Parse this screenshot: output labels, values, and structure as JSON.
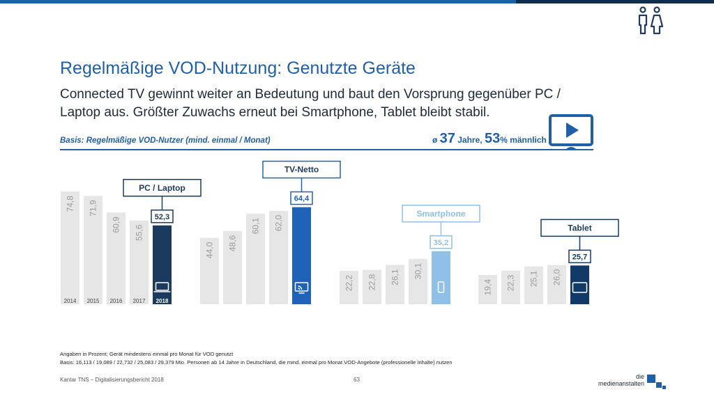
{
  "header": {
    "title": "Regelmäßige VOD-Nutzung: Genutzte Geräte",
    "subtitle": "Connected TV gewinnt weiter an Bedeutung und baut den Vorsprung gegenüber PC / Laptop aus. Größter Zuwachs erneut bei Smartphone, Tablet bleibt stabil.",
    "basis": "Basis: Regelmäßige VOD-Nutzer (mind. einmal / Monat)",
    "stats": {
      "prefix": "ø ",
      "age": "37",
      "age_unit": " Jahre, ",
      "male": "53",
      "male_unit": "% männlich"
    }
  },
  "icons": {
    "people": "male-female-icon",
    "tv": "tv-play-icon"
  },
  "colors": {
    "accent": "#1f5fa8",
    "dark": "#1c3a5e",
    "grey_bar": "#e6e6e6",
    "smartphone": "#8fc0e8",
    "tablet": "#123a66"
  },
  "chart_data": {
    "type": "bar",
    "categories": [
      "2014",
      "2015",
      "2016",
      "2017",
      "2018"
    ],
    "ylim": [
      0,
      80
    ],
    "groups": [
      {
        "name": "PC / Laptop",
        "icon": "laptop-icon",
        "values": [
          74.8,
          71.9,
          60.9,
          55.6,
          52.3
        ],
        "labels": [
          "74,8",
          "71,9",
          "60,9",
          "55,6",
          "52,3"
        ],
        "highlight_color": "#1c3a5e"
      },
      {
        "name": "TV-Netto",
        "icon": "connected-tv-icon",
        "values": [
          44.0,
          48.6,
          60.1,
          62.0,
          64.4
        ],
        "labels": [
          "44,0",
          "48,6",
          "60,1",
          "62,0",
          "64,4"
        ],
        "highlight_color": "#1e63b8"
      },
      {
        "name": "Smartphone",
        "icon": "smartphone-icon",
        "values": [
          22.2,
          22.8,
          26.1,
          30.1,
          35.2
        ],
        "labels": [
          "22,2",
          "22,8",
          "26,1",
          "30,1",
          "35,2"
        ],
        "highlight_color": "#8fc0e8"
      },
      {
        "name": "Tablet",
        "icon": "tablet-icon",
        "values": [
          19.4,
          22.3,
          25.1,
          26.0,
          25.7
        ],
        "labels": [
          "19,4",
          "22,3",
          "25,1",
          "26,0",
          "25,7"
        ],
        "highlight_color": "#123a66"
      }
    ]
  },
  "footnote": {
    "line1": "Angaben in Prozent; Gerät mindestens einmal pro Monat für VOD genutzt",
    "line2": "Basis: 16,113 / 19,089 / 22,732 / 25,083 / 29,379 Mio. Personen ab 14 Jahre in Deutschland, die mind. einmal pro Monat VOD-Angebote (professionelle Inhalte) nutzen"
  },
  "footer": {
    "source": "Kantar TNS – Digitalisierungsbericht 2018",
    "page": "63",
    "logo_line1": "die",
    "logo_line2": "medienanstalten"
  }
}
